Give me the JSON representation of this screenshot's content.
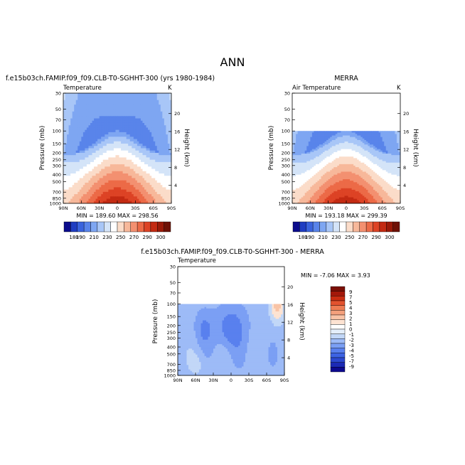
{
  "figure": {
    "title": "ANN"
  },
  "colors": {
    "temp_scale": [
      "#0b0c8c",
      "#1f3dc2",
      "#3a63dd",
      "#5984ea",
      "#7ea6f2",
      "#a8c6f7",
      "#d4e4f8",
      "#ffffff",
      "#fbdcc9",
      "#f7b89a",
      "#f39070",
      "#ec6a47",
      "#dd4325",
      "#c32a12",
      "#9a1a09",
      "#6e1106"
    ],
    "diff_scale": [
      "#0d0a8f",
      "#1c2ab5",
      "#2c48d0",
      "#3d63e3",
      "#5980ee",
      "#7b9ff4",
      "#9dbbf7",
      "#c2d7f7",
      "#e4eefa",
      "#ffffff",
      "#fde3d2",
      "#f9c4a7",
      "#f4a07c",
      "#ee7c53",
      "#e3522e",
      "#c92d12",
      "#a3180a",
      "#7b0f06"
    ]
  },
  "chart_data": [
    {
      "type": "heatmap",
      "title": "f.e15b03ch.FAMIP.f09_f09.CLB-T0-SGHHT-300 (yrs 1980-1984)",
      "subtitle": "Temperature",
      "units": "K",
      "ylabel": "Pressure (mb)",
      "y2label": "Height (km)",
      "x_ticks": [
        "90N",
        "60N",
        "30N",
        "0",
        "30S",
        "60S",
        "90S"
      ],
      "y_ticks": [
        "30",
        "50",
        "70",
        "100",
        "150",
        "200",
        "250",
        "300",
        "400",
        "500",
        "700",
        "850",
        "1000"
      ],
      "y2_ticks": [
        "20",
        "16",
        "12",
        "8",
        "4"
      ],
      "stats": "MIN = 189.60   MAX = 298.56",
      "colorbar_labels": [
        "180",
        "190",
        "210",
        "230",
        "250",
        "270",
        "290",
        "300"
      ]
    },
    {
      "type": "heatmap",
      "title": "MERRA",
      "subtitle": "Air Temperature",
      "units": "K",
      "ylabel": "Pressure (mb)",
      "y2label": "Height (km)",
      "x_ticks": [
        "90N",
        "60N",
        "30N",
        "0",
        "30S",
        "60S",
        "90S"
      ],
      "y_ticks": [
        "30",
        "50",
        "70",
        "100",
        "150",
        "200",
        "250",
        "300",
        "400",
        "500",
        "700",
        "850",
        "1000"
      ],
      "y2_ticks": [
        "20",
        "16",
        "12",
        "8",
        "4"
      ],
      "stats": "MIN = 193.18   MAX = 299.39",
      "colorbar_labels": [
        "180",
        "190",
        "210",
        "230",
        "250",
        "270",
        "290",
        "300"
      ],
      "data_top_mb": 100
    },
    {
      "type": "heatmap",
      "title": "f.e15b03ch.FAMIP.f09_f09.CLB-T0-SGHHT-300 - MERRA",
      "subtitle": "Temperature",
      "ylabel": "Pressure (mb)",
      "y2label": "Height (km)",
      "x_ticks": [
        "90N",
        "60N",
        "30N",
        "0",
        "30S",
        "60S",
        "90S"
      ],
      "y_ticks": [
        "30",
        "50",
        "70",
        "100",
        "150",
        "200",
        "250",
        "300",
        "400",
        "500",
        "700",
        "850",
        "1000"
      ],
      "y2_ticks": [
        "20",
        "16",
        "12",
        "8",
        "4"
      ],
      "stats": "MIN =  -7.06   MAX =   3.93",
      "colorbar_labels": [
        "9",
        "7",
        "5",
        "4",
        "3",
        "2",
        "1",
        "0",
        "-1",
        "-2",
        "-3",
        "-4",
        "-5",
        "-7",
        "-9"
      ],
      "data_top_mb": 100
    }
  ]
}
